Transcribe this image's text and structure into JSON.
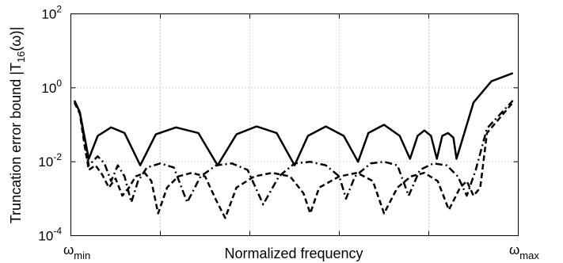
{
  "chart_data": {
    "type": "line",
    "title": "",
    "xlabel": "Normalized frequency",
    "ylabel": "Truncation error bound |T16(ω)|",
    "ylabel_parts": {
      "prefix": "Truncation error bound |T",
      "subscript": "16",
      "suffix": "(ω)|"
    },
    "x_tick_labels": {
      "start": {
        "base": "ω",
        "sub": "min"
      },
      "end": {
        "base": "ω",
        "sub": "max"
      }
    },
    "xlim": [
      0,
      1
    ],
    "ylim": [
      0.0001,
      100
    ],
    "y_scale": "log",
    "y_ticks": [
      {
        "base": "10",
        "exp": "2",
        "value": 100
      },
      {
        "base": "10",
        "exp": "0",
        "value": 1
      },
      {
        "base": "10",
        "exp": "-2",
        "value": 0.01
      },
      {
        "base": "10",
        "exp": "-4",
        "value": 0.0001
      }
    ],
    "x_grid": [
      0.2,
      0.4,
      0.6,
      0.8
    ],
    "grid": true,
    "series": [
      {
        "style": "solid",
        "color": "#000000",
        "points": [
          [
            0.008,
            0.45
          ],
          [
            0.02,
            0.22
          ],
          [
            0.03,
            0.05
          ],
          [
            0.04,
            0.012
          ],
          [
            0.06,
            0.05
          ],
          [
            0.09,
            0.085
          ],
          [
            0.12,
            0.06
          ],
          [
            0.155,
            0.008
          ],
          [
            0.19,
            0.055
          ],
          [
            0.235,
            0.085
          ],
          [
            0.285,
            0.06
          ],
          [
            0.328,
            0.008
          ],
          [
            0.37,
            0.055
          ],
          [
            0.415,
            0.09
          ],
          [
            0.46,
            0.06
          ],
          [
            0.5,
            0.008
          ],
          [
            0.53,
            0.05
          ],
          [
            0.57,
            0.09
          ],
          [
            0.61,
            0.05
          ],
          [
            0.642,
            0.01
          ],
          [
            0.665,
            0.06
          ],
          [
            0.7,
            0.1
          ],
          [
            0.735,
            0.05
          ],
          [
            0.758,
            0.012
          ],
          [
            0.775,
            0.05
          ],
          [
            0.79,
            0.07
          ],
          [
            0.805,
            0.05
          ],
          [
            0.818,
            0.012
          ],
          [
            0.83,
            0.05
          ],
          [
            0.843,
            0.06
          ],
          [
            0.855,
            0.045
          ],
          [
            0.862,
            0.012
          ],
          [
            0.875,
            0.04
          ],
          [
            0.9,
            0.4
          ],
          [
            0.94,
            1.5
          ],
          [
            0.988,
            2.5
          ]
        ]
      },
      {
        "style": "dashdot",
        "color": "#000000",
        "points": [
          [
            0.008,
            0.45
          ],
          [
            0.02,
            0.22
          ],
          [
            0.03,
            0.04
          ],
          [
            0.04,
            0.008
          ],
          [
            0.06,
            0.014
          ],
          [
            0.075,
            0.009
          ],
          [
            0.09,
            0.003
          ],
          [
            0.105,
            0.008
          ],
          [
            0.12,
            0.004
          ],
          [
            0.135,
            0.0008
          ],
          [
            0.15,
            0.003
          ],
          [
            0.17,
            0.007
          ],
          [
            0.2,
            0.009
          ],
          [
            0.23,
            0.007
          ],
          [
            0.26,
            0.0008
          ],
          [
            0.29,
            0.004
          ],
          [
            0.325,
            0.008
          ],
          [
            0.36,
            0.009
          ],
          [
            0.395,
            0.006
          ],
          [
            0.43,
            0.0007
          ],
          [
            0.465,
            0.004
          ],
          [
            0.5,
            0.009
          ],
          [
            0.535,
            0.01
          ],
          [
            0.57,
            0.008
          ],
          [
            0.6,
            0.004
          ],
          [
            0.615,
            0.001
          ],
          [
            0.635,
            0.004
          ],
          [
            0.67,
            0.009
          ],
          [
            0.7,
            0.01
          ],
          [
            0.73,
            0.008
          ],
          [
            0.755,
            0.0012
          ],
          [
            0.78,
            0.006
          ],
          [
            0.81,
            0.009
          ],
          [
            0.84,
            0.008
          ],
          [
            0.865,
            0.004
          ],
          [
            0.885,
            0.0012
          ],
          [
            0.905,
            0.006
          ],
          [
            0.93,
            0.08
          ],
          [
            0.988,
            0.45
          ]
        ]
      },
      {
        "style": "dashed",
        "color": "#000000",
        "points": [
          [
            0.008,
            0.4
          ],
          [
            0.02,
            0.2
          ],
          [
            0.03,
            0.03
          ],
          [
            0.04,
            0.006
          ],
          [
            0.055,
            0.008
          ],
          [
            0.07,
            0.0045
          ],
          [
            0.085,
            0.002
          ],
          [
            0.1,
            0.0035
          ],
          [
            0.115,
            0.0012
          ],
          [
            0.13,
            0.002
          ],
          [
            0.145,
            0.004
          ],
          [
            0.165,
            0.005
          ],
          [
            0.18,
            0.003
          ],
          [
            0.195,
            0.0004
          ],
          [
            0.215,
            0.002
          ],
          [
            0.24,
            0.004
          ],
          [
            0.27,
            0.005
          ],
          [
            0.3,
            0.004
          ],
          [
            0.325,
            0.0009
          ],
          [
            0.345,
            0.0003
          ],
          [
            0.37,
            0.002
          ],
          [
            0.41,
            0.004
          ],
          [
            0.45,
            0.005
          ],
          [
            0.49,
            0.004
          ],
          [
            0.52,
            0.0014
          ],
          [
            0.535,
            0.0004
          ],
          [
            0.555,
            0.002
          ],
          [
            0.6,
            0.004
          ],
          [
            0.64,
            0.005
          ],
          [
            0.675,
            0.003
          ],
          [
            0.7,
            0.0004
          ],
          [
            0.73,
            0.002
          ],
          [
            0.76,
            0.004
          ],
          [
            0.79,
            0.005
          ],
          [
            0.82,
            0.003
          ],
          [
            0.845,
            0.0005
          ],
          [
            0.87,
            0.002
          ],
          [
            0.885,
            0.003
          ],
          [
            0.9,
            0.0012
          ],
          [
            0.915,
            0.002
          ],
          [
            0.93,
            0.06
          ],
          [
            0.988,
            0.4
          ]
        ]
      }
    ]
  }
}
